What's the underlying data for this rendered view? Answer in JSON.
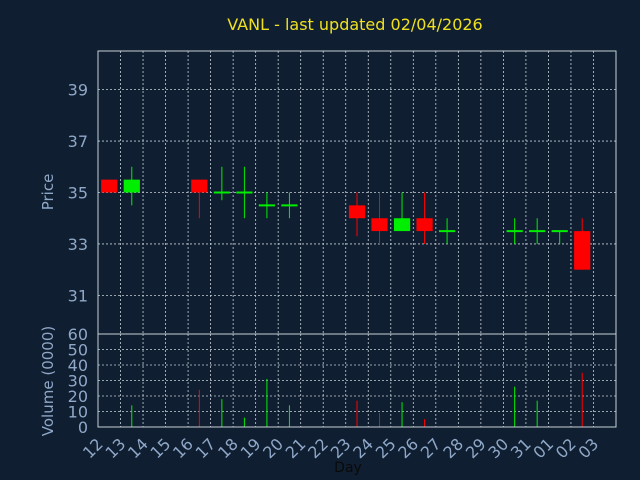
{
  "colors": {
    "background": "#0f1e30",
    "up": "#00ee00",
    "down": "#ff0000",
    "title": "#f0e020",
    "axis_text": "#8fa8c8"
  },
  "chart_data": {
    "type": "candlestick",
    "title": "VANL - last updated 02/04/2026",
    "xlabel": "Day",
    "ylabel": "Price",
    "volume_ylabel": "Volume (0000)",
    "ylim": [
      29.5,
      40.5
    ],
    "yticks": [
      "31",
      "33",
      "35",
      "37",
      "39"
    ],
    "volume_ylim": [
      0,
      60
    ],
    "volume_yticks": [
      "0",
      "10",
      "20",
      "30",
      "40",
      "50",
      "60"
    ],
    "grid": true,
    "days": [
      "12",
      "13",
      "14",
      "15",
      "16",
      "17",
      "18",
      "19",
      "20",
      "21",
      "22",
      "23",
      "24",
      "25",
      "26",
      "27",
      "28",
      "29",
      "30",
      "31",
      "01",
      "02",
      "03"
    ],
    "candles": [
      {
        "day": "12",
        "open": 35.5,
        "high": 35.5,
        "low": 35.0,
        "close": 35.0,
        "volume": 0
      },
      {
        "day": "13",
        "open": 35.0,
        "high": 36.0,
        "low": 34.5,
        "close": 35.5,
        "volume": 14
      },
      {
        "day": "16",
        "open": 35.5,
        "high": 35.5,
        "low": 34.0,
        "close": 35.0,
        "volume": 24
      },
      {
        "day": "17",
        "open": 35.0,
        "high": 36.0,
        "low": 34.7,
        "close": 35.0,
        "volume": 18
      },
      {
        "day": "18",
        "open": 35.0,
        "high": 36.0,
        "low": 34.0,
        "close": 35.0,
        "volume": 6
      },
      {
        "day": "19",
        "open": 34.5,
        "high": 35.0,
        "low": 34.0,
        "close": 34.5,
        "volume": 31
      },
      {
        "day": "20",
        "open": 34.5,
        "high": 35.0,
        "low": 34.0,
        "close": 34.5,
        "volume": 14
      },
      {
        "day": "23",
        "open": 34.5,
        "high": 35.0,
        "low": 33.3,
        "close": 34.0,
        "volume": 17
      },
      {
        "day": "24",
        "open": 34.0,
        "high": 35.0,
        "low": 33.0,
        "close": 33.5,
        "volume": 9
      },
      {
        "day": "25",
        "open": 33.5,
        "high": 35.0,
        "low": 33.5,
        "close": 34.0,
        "volume": 16
      },
      {
        "day": "26",
        "open": 34.0,
        "high": 35.0,
        "low": 33.0,
        "close": 33.5,
        "volume": 5
      },
      {
        "day": "27",
        "open": 33.5,
        "high": 34.0,
        "low": 33.0,
        "close": 33.5,
        "volume": 0
      },
      {
        "day": "30",
        "open": 33.5,
        "high": 34.0,
        "low": 33.0,
        "close": 33.5,
        "volume": 26
      },
      {
        "day": "31",
        "open": 33.5,
        "high": 34.0,
        "low": 33.0,
        "close": 33.5,
        "volume": 17
      },
      {
        "day": "01",
        "open": 33.5,
        "high": 33.5,
        "low": 33.0,
        "close": 33.5,
        "volume": 0
      },
      {
        "day": "02",
        "open": 33.5,
        "high": 34.0,
        "low": 32.0,
        "close": 32.0,
        "volume": 35
      }
    ]
  }
}
